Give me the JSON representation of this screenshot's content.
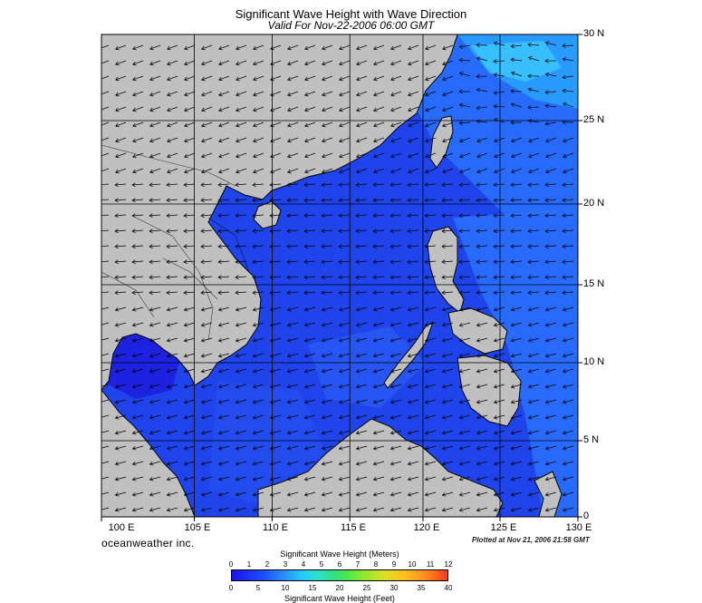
{
  "title": "Significant Wave Height with Wave Direction",
  "subtitle": "Valid For Nov-22-2006 06:00 GMT",
  "lon_labels": [
    "100 E",
    "105 E",
    "110 E",
    "115 E",
    "120 E",
    "125 E",
    "130 E"
  ],
  "lat_labels": [
    "30 N",
    "25 N",
    "20 N",
    "15 N",
    "10 N",
    "5 N",
    "0"
  ],
  "brand": "oceanweather inc.",
  "plotted": "Plotted at Nov 21, 2006 21:58 GMT",
  "colorbar": {
    "meters_title": "Significant Wave Height (Meters)",
    "meters_ticks": [
      "0",
      "1",
      "2",
      "3",
      "4",
      "5",
      "6",
      "7",
      "8",
      "9",
      "10",
      "11",
      "12"
    ],
    "feet_title": "Significant Wave Height (Feet)",
    "feet_ticks": [
      "0",
      "5",
      "10",
      "15",
      "20",
      "25",
      "30",
      "35",
      "40"
    ]
  },
  "colors": {
    "land": "#c0c0c0",
    "sea_low": "#1a14e6",
    "sea_mid": "#1f55f0",
    "sea_high": "#2a90ff"
  }
}
